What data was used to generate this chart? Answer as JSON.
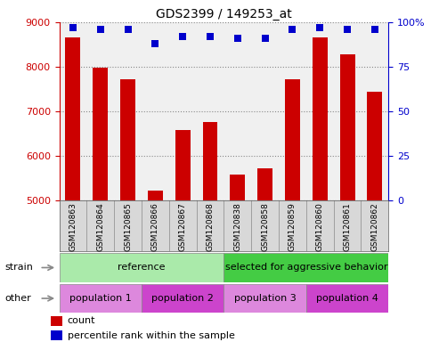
{
  "title": "GDS2399 / 149253_at",
  "samples": [
    "GSM120863",
    "GSM120864",
    "GSM120865",
    "GSM120866",
    "GSM120867",
    "GSM120868",
    "GSM120838",
    "GSM120858",
    "GSM120859",
    "GSM120860",
    "GSM120861",
    "GSM120862"
  ],
  "count_values": [
    8650,
    7980,
    7720,
    5220,
    6580,
    6750,
    5580,
    5720,
    7720,
    8650,
    8270,
    7440
  ],
  "percentile_values": [
    97,
    96,
    96,
    88,
    92,
    92,
    91,
    91,
    96,
    97,
    96,
    96
  ],
  "ymin": 5000,
  "ymax": 9000,
  "yticks": [
    5000,
    6000,
    7000,
    8000,
    9000
  ],
  "y2min": 0,
  "y2max": 100,
  "y2ticks": [
    0,
    25,
    50,
    75,
    100
  ],
  "y2ticklabels": [
    "0",
    "25",
    "50",
    "75",
    "100%"
  ],
  "bar_color": "#cc0000",
  "dot_color": "#0000cc",
  "bg_color": "#ffffff",
  "plot_bg": "#f0f0f0",
  "strain_ref_color": "#aaeaaa",
  "strain_agg_color": "#44cc44",
  "other_pop1_color": "#dd88dd",
  "other_pop2_color": "#cc44cc",
  "other_pop3_color": "#dd88dd",
  "other_pop4_color": "#cc44cc",
  "strain_labels": [
    [
      "reference",
      0,
      5
    ],
    [
      "selected for aggressive behavior",
      6,
      11
    ]
  ],
  "other_labels": [
    [
      "population 1",
      0,
      2
    ],
    [
      "population 2",
      3,
      5
    ],
    [
      "population 3",
      6,
      8
    ],
    [
      "population 4",
      9,
      11
    ]
  ],
  "legend_count_label": "count",
  "legend_pct_label": "percentile rank within the sample",
  "strain_row_label": "strain",
  "other_row_label": "other",
  "tick_color_left": "#cc0000",
  "tick_color_right": "#0000cc",
  "label_bg": "#d8d8d8"
}
